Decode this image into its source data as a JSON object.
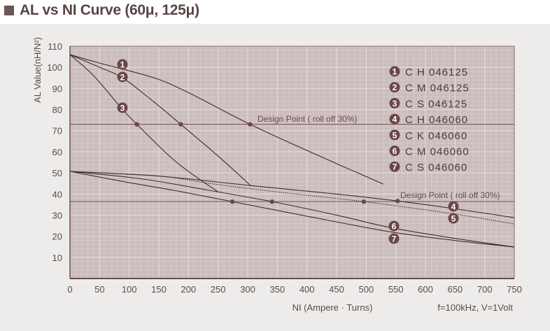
{
  "title": "AL vs NI Curve (60μ, 125μ)",
  "chart_data": {
    "type": "line",
    "title": "AL vs NI Curve (60μ, 125μ)",
    "xlabel": "NI (Ampere · Turns)",
    "ylabel": "AL Value(nH/N²)",
    "note": "f=100kHz, V=1Volt",
    "xlim": [
      0,
      750
    ],
    "ylim": [
      0,
      110
    ],
    "xticks": [
      0,
      50,
      100,
      150,
      200,
      250,
      300,
      350,
      400,
      450,
      500,
      550,
      600,
      650,
      700,
      750
    ],
    "yticks": [
      10,
      20,
      30,
      40,
      50,
      60,
      70,
      80,
      90,
      100,
      110
    ],
    "grid": true,
    "legend_position": "top-right",
    "colors": {
      "plot_bg": "#cbbdbd",
      "grid": "#e8e0e0",
      "line": "#3a2f2f",
      "marker": "#6b4646",
      "axis": "#6a4f4f"
    },
    "design_lines": [
      {
        "label": "Design Point ( roll off 30%)",
        "y": 73
      },
      {
        "label": "Design Point ( roll off 30%)",
        "y": 36.4
      }
    ],
    "series": [
      {
        "name": "C H 046125",
        "badge": "1",
        "dotted": false,
        "x": [
          0,
          50,
          142,
          200,
          304,
          413,
          529
        ],
        "y": [
          106,
          102,
          95,
          88,
          73,
          59,
          44.7
        ],
        "design_point": [
          304,
          73
        ]
      },
      {
        "name": "C M 046125",
        "badge": "2",
        "dotted": false,
        "x": [
          0,
          50,
          89,
          140,
          187,
          250,
          305
        ],
        "y": [
          106,
          100,
          95,
          84,
          73,
          58,
          44
        ],
        "design_point": [
          187,
          73
        ]
      },
      {
        "name": "C S 046125",
        "badge": "3",
        "dotted": false,
        "x": [
          0,
          40,
          89,
          113,
          180,
          250
        ],
        "y": [
          106,
          96,
          80,
          73,
          55,
          41
        ],
        "design_point": [
          113,
          73
        ]
      },
      {
        "name": "C H 046060",
        "badge": "4",
        "dotted": false,
        "x": [
          0,
          150,
          305,
          450,
          553,
          650,
          750
        ],
        "y": [
          50.7,
          48.5,
          44,
          40,
          36.7,
          33,
          28.8
        ],
        "design_point": [
          553,
          36.7
        ]
      },
      {
        "name": "C K 046060",
        "badge": "5",
        "dotted": true,
        "x": [
          0,
          150,
          236,
          350,
          496,
          650,
          750
        ],
        "y": [
          50.7,
          48.5,
          45,
          41,
          36.4,
          30.5,
          25.8
        ],
        "design_point": [
          496,
          36.4
        ]
      },
      {
        "name": "C M 046060",
        "badge": "6",
        "dotted": false,
        "x": [
          0,
          118,
          230,
          341,
          450,
          543,
          650,
          750
        ],
        "y": [
          50.7,
          47.3,
          42,
          36.4,
          30,
          24,
          19,
          14.9
        ],
        "design_point": [
          341,
          36.4
        ]
      },
      {
        "name": "C S 046060",
        "badge": "7",
        "dotted": false,
        "x": [
          0,
          94,
          180,
          274,
          400,
          543,
          650,
          750
        ],
        "y": [
          50.7,
          45.7,
          41.5,
          36.4,
          29.5,
          22,
          18,
          14.9
        ],
        "design_point": [
          274,
          36.4
        ]
      }
    ]
  }
}
